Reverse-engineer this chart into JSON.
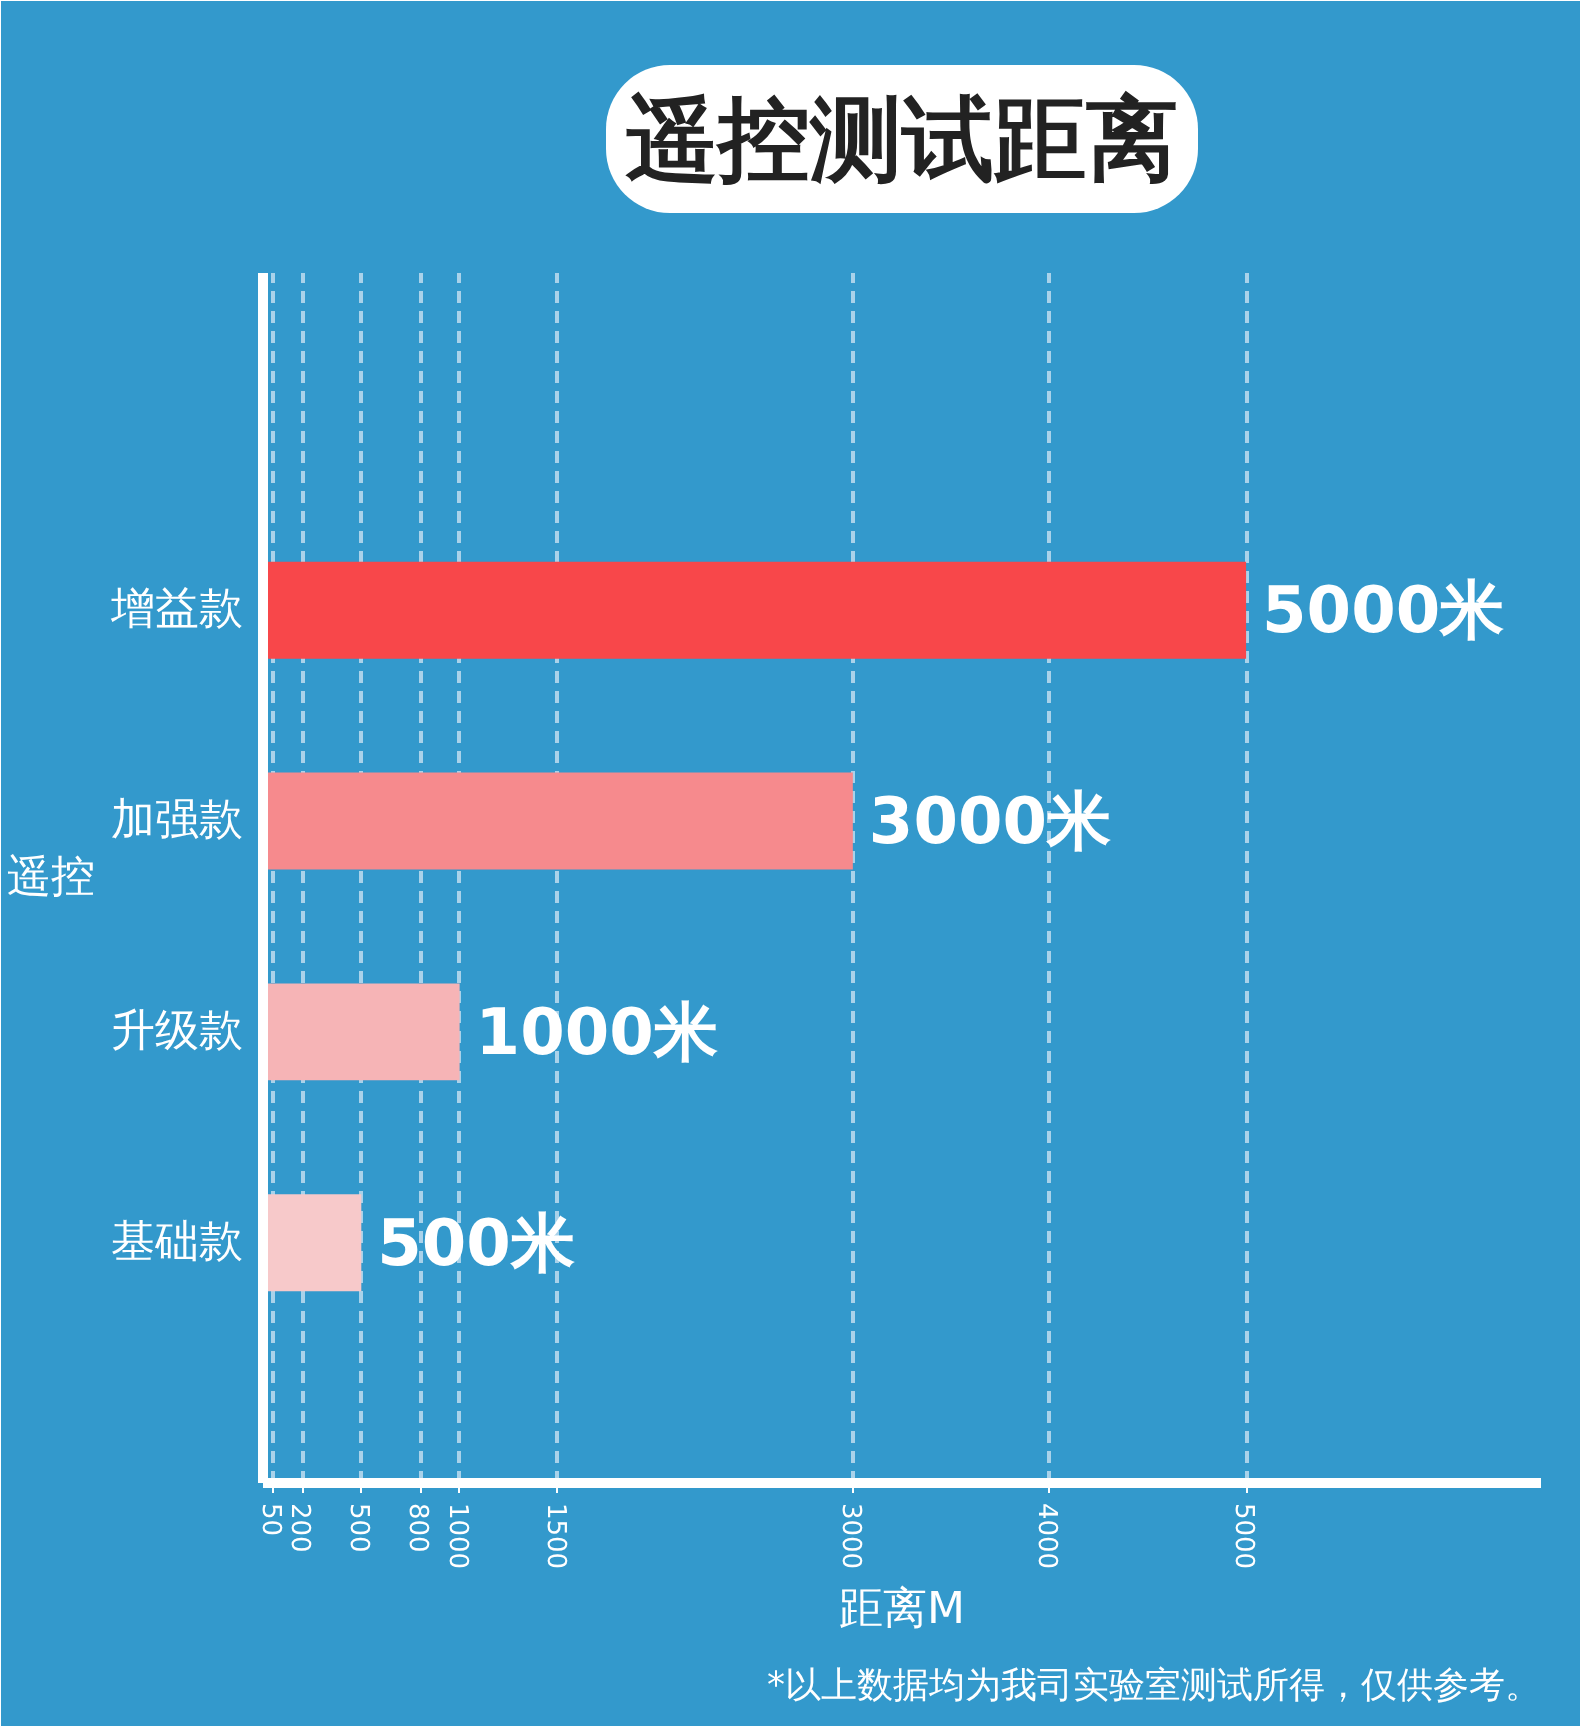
{
  "chart_data": {
    "type": "bar",
    "orientation": "horizontal",
    "title": "遥控测试距离",
    "ylabel": "遥控",
    "xlabel": "距离M",
    "categories": [
      "增益款",
      "加强款",
      "升级款",
      "基础款"
    ],
    "values": [
      5000,
      3000,
      1000,
      500
    ],
    "colors": [
      "#f8474a",
      "#f68a8d",
      "#f6b4b6",
      "#f7c9ca"
    ],
    "value_labels": [
      "5000米",
      "3000米",
      "1000米",
      "500米"
    ],
    "xlim": [
      0,
      6500
    ],
    "xticks": [
      50,
      200,
      500,
      800,
      1000,
      1500,
      3000,
      4000,
      5000
    ],
    "grid": true,
    "annotations": [
      "*以上数据均为我司实验室测试所得，仅供参考。"
    ]
  }
}
